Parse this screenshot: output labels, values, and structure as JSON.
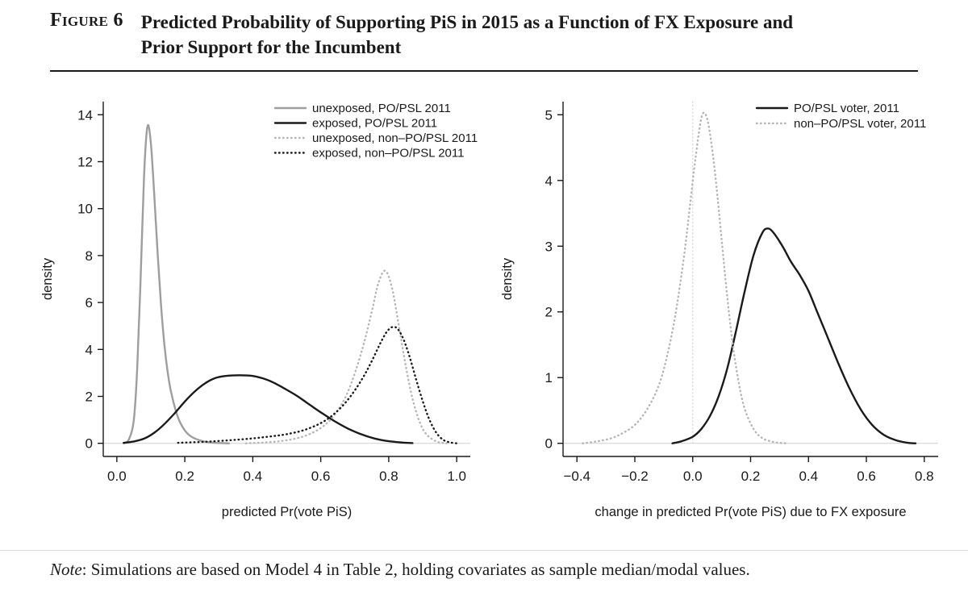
{
  "figure": {
    "label": "Figure 6",
    "title_line1": "Predicted Probability of Supporting PiS in 2015 as a Function of FX Exposure and",
    "title_line2": "Prior Support for the Incumbent",
    "note_label": "Note",
    "note_text": ": Simulations are based on Model 4 in Table 2, holding covariates as sample median/modal values."
  },
  "colors": {
    "black_line": "#1a1a1a",
    "gray_line": "#9e9e9e",
    "light_gray_line": "#b5b5b5",
    "baseline": "#d6d6d6",
    "reference_line": "#d9d9d9",
    "axis": "#1a1a1a"
  },
  "chart_data": [
    {
      "id": "left",
      "type": "line",
      "title": "",
      "xlabel": "predicted Pr(vote PiS)",
      "ylabel": "density",
      "xlim": [
        0,
        1
      ],
      "ylim": [
        0,
        14
      ],
      "xtick_values": [
        0,
        0.2,
        0.4,
        0.6,
        0.8,
        1.0
      ],
      "xtick_labels": [
        "0.0",
        "0.2",
        "0.4",
        "0.6",
        "0.8",
        "1.0"
      ],
      "ytick_values": [
        0,
        2,
        4,
        6,
        8,
        10,
        12,
        14
      ],
      "ytick_labels": [
        "0",
        "2",
        "4",
        "6",
        "8",
        "10",
        "12",
        "14"
      ],
      "grid": false,
      "legend_position": "top-center",
      "series": [
        {
          "name": "unexposed, PO/PSL 2011",
          "line": "solid",
          "color": "gray_line",
          "points": [
            [
              0.02,
              0
            ],
            [
              0.035,
              0.15
            ],
            [
              0.05,
              1.0
            ],
            [
              0.06,
              3.2
            ],
            [
              0.07,
              7.0
            ],
            [
              0.08,
              11.4
            ],
            [
              0.09,
              13.5
            ],
            [
              0.1,
              12.8
            ],
            [
              0.11,
              10.6
            ],
            [
              0.12,
              8.1
            ],
            [
              0.13,
              5.9
            ],
            [
              0.14,
              4.2
            ],
            [
              0.15,
              3.0
            ],
            [
              0.16,
              2.15
            ],
            [
              0.18,
              1.1
            ],
            [
              0.2,
              0.55
            ],
            [
              0.22,
              0.28
            ],
            [
              0.25,
              0.1
            ],
            [
              0.28,
              0.03
            ],
            [
              0.33,
              0
            ]
          ]
        },
        {
          "name": "exposed, PO/PSL 2011",
          "line": "solid",
          "color": "black_line",
          "points": [
            [
              0.02,
              0.02
            ],
            [
              0.05,
              0.08
            ],
            [
              0.08,
              0.2
            ],
            [
              0.11,
              0.45
            ],
            [
              0.14,
              0.82
            ],
            [
              0.17,
              1.28
            ],
            [
              0.2,
              1.78
            ],
            [
              0.23,
              2.22
            ],
            [
              0.26,
              2.56
            ],
            [
              0.29,
              2.78
            ],
            [
              0.32,
              2.87
            ],
            [
              0.36,
              2.9
            ],
            [
              0.4,
              2.87
            ],
            [
              0.44,
              2.72
            ],
            [
              0.47,
              2.52
            ],
            [
              0.5,
              2.28
            ],
            [
              0.53,
              2.02
            ],
            [
              0.56,
              1.72
            ],
            [
              0.6,
              1.32
            ],
            [
              0.64,
              0.95
            ],
            [
              0.68,
              0.63
            ],
            [
              0.72,
              0.38
            ],
            [
              0.76,
              0.2
            ],
            [
              0.8,
              0.09
            ],
            [
              0.84,
              0.03
            ],
            [
              0.87,
              0.01
            ]
          ]
        },
        {
          "name": "unexposed, non–PO/PSL 2011",
          "line": "dotted",
          "color": "light_gray_line",
          "points": [
            [
              0.38,
              0
            ],
            [
              0.45,
              0.05
            ],
            [
              0.5,
              0.13
            ],
            [
              0.55,
              0.3
            ],
            [
              0.6,
              0.65
            ],
            [
              0.64,
              1.2
            ],
            [
              0.68,
              2.2
            ],
            [
              0.72,
              3.9
            ],
            [
              0.75,
              5.6
            ],
            [
              0.77,
              6.85
            ],
            [
              0.79,
              7.35
            ],
            [
              0.81,
              6.6
            ],
            [
              0.83,
              5.0
            ],
            [
              0.85,
              3.3
            ],
            [
              0.87,
              1.9
            ],
            [
              0.89,
              0.95
            ],
            [
              0.91,
              0.4
            ],
            [
              0.94,
              0.08
            ],
            [
              0.97,
              0
            ]
          ]
        },
        {
          "name": "exposed, non–PO/PSL 2011",
          "line": "dotted",
          "color": "black_line",
          "points": [
            [
              0.18,
              0.02
            ],
            [
              0.25,
              0.06
            ],
            [
              0.3,
              0.1
            ],
            [
              0.35,
              0.15
            ],
            [
              0.4,
              0.21
            ],
            [
              0.45,
              0.29
            ],
            [
              0.5,
              0.39
            ],
            [
              0.55,
              0.56
            ],
            [
              0.6,
              0.86
            ],
            [
              0.64,
              1.26
            ],
            [
              0.68,
              1.86
            ],
            [
              0.72,
              2.7
            ],
            [
              0.75,
              3.5
            ],
            [
              0.78,
              4.4
            ],
            [
              0.8,
              4.85
            ],
            [
              0.82,
              4.95
            ],
            [
              0.84,
              4.55
            ],
            [
              0.86,
              3.75
            ],
            [
              0.88,
              2.75
            ],
            [
              0.9,
              1.8
            ],
            [
              0.92,
              1.0
            ],
            [
              0.94,
              0.45
            ],
            [
              0.96,
              0.15
            ],
            [
              0.98,
              0.04
            ],
            [
              1.0,
              0
            ]
          ]
        }
      ]
    },
    {
      "id": "right",
      "type": "line",
      "title": "",
      "xlabel": "change in predicted Pr(vote PiS) due to FX exposure",
      "ylabel": "density",
      "xlim": [
        -0.4,
        0.8
      ],
      "ylim": [
        0,
        5
      ],
      "xtick_values": [
        -0.4,
        -0.2,
        0,
        0.2,
        0.4,
        0.6,
        0.8
      ],
      "xtick_labels": [
        "−0.4",
        "−0.2",
        "0.0",
        "0.2",
        "0.4",
        "0.6",
        "0.8"
      ],
      "ytick_values": [
        0,
        1,
        2,
        3,
        4,
        5
      ],
      "ytick_labels": [
        "0",
        "1",
        "2",
        "3",
        "4",
        "5"
      ],
      "grid": false,
      "legend_position": "top-right",
      "reference_vline": 0,
      "series": [
        {
          "name": "PO/PSL voter, 2011",
          "line": "solid",
          "color": "black_line",
          "points": [
            [
              -0.07,
              0
            ],
            [
              -0.04,
              0.03
            ],
            [
              0,
              0.1
            ],
            [
              0.03,
              0.22
            ],
            [
              0.06,
              0.42
            ],
            [
              0.09,
              0.72
            ],
            [
              0.12,
              1.15
            ],
            [
              0.15,
              1.72
            ],
            [
              0.18,
              2.32
            ],
            [
              0.21,
              2.86
            ],
            [
              0.24,
              3.2
            ],
            [
              0.26,
              3.27
            ],
            [
              0.28,
              3.2
            ],
            [
              0.31,
              3.0
            ],
            [
              0.34,
              2.76
            ],
            [
              0.37,
              2.56
            ],
            [
              0.4,
              2.32
            ],
            [
              0.43,
              2.0
            ],
            [
              0.46,
              1.68
            ],
            [
              0.5,
              1.25
            ],
            [
              0.54,
              0.85
            ],
            [
              0.58,
              0.52
            ],
            [
              0.62,
              0.28
            ],
            [
              0.66,
              0.13
            ],
            [
              0.7,
              0.05
            ],
            [
              0.74,
              0.01
            ],
            [
              0.77,
              0
            ]
          ]
        },
        {
          "name": "non–PO/PSL voter, 2011",
          "line": "dotted",
          "color": "light_gray_line",
          "points": [
            [
              -0.38,
              0
            ],
            [
              -0.33,
              0.03
            ],
            [
              -0.28,
              0.08
            ],
            [
              -0.24,
              0.16
            ],
            [
              -0.2,
              0.28
            ],
            [
              -0.16,
              0.5
            ],
            [
              -0.12,
              0.85
            ],
            [
              -0.09,
              1.3
            ],
            [
              -0.06,
              1.95
            ],
            [
              -0.03,
              2.85
            ],
            [
              -0.01,
              3.6
            ],
            [
              0.01,
              4.35
            ],
            [
              0.03,
              4.95
            ],
            [
              0.045,
              5.0
            ],
            [
              0.06,
              4.7
            ],
            [
              0.08,
              4.0
            ],
            [
              0.1,
              3.1
            ],
            [
              0.12,
              2.2
            ],
            [
              0.14,
              1.45
            ],
            [
              0.16,
              0.9
            ],
            [
              0.18,
              0.52
            ],
            [
              0.21,
              0.22
            ],
            [
              0.24,
              0.08
            ],
            [
              0.28,
              0.02
            ],
            [
              0.32,
              0
            ]
          ]
        }
      ]
    }
  ]
}
